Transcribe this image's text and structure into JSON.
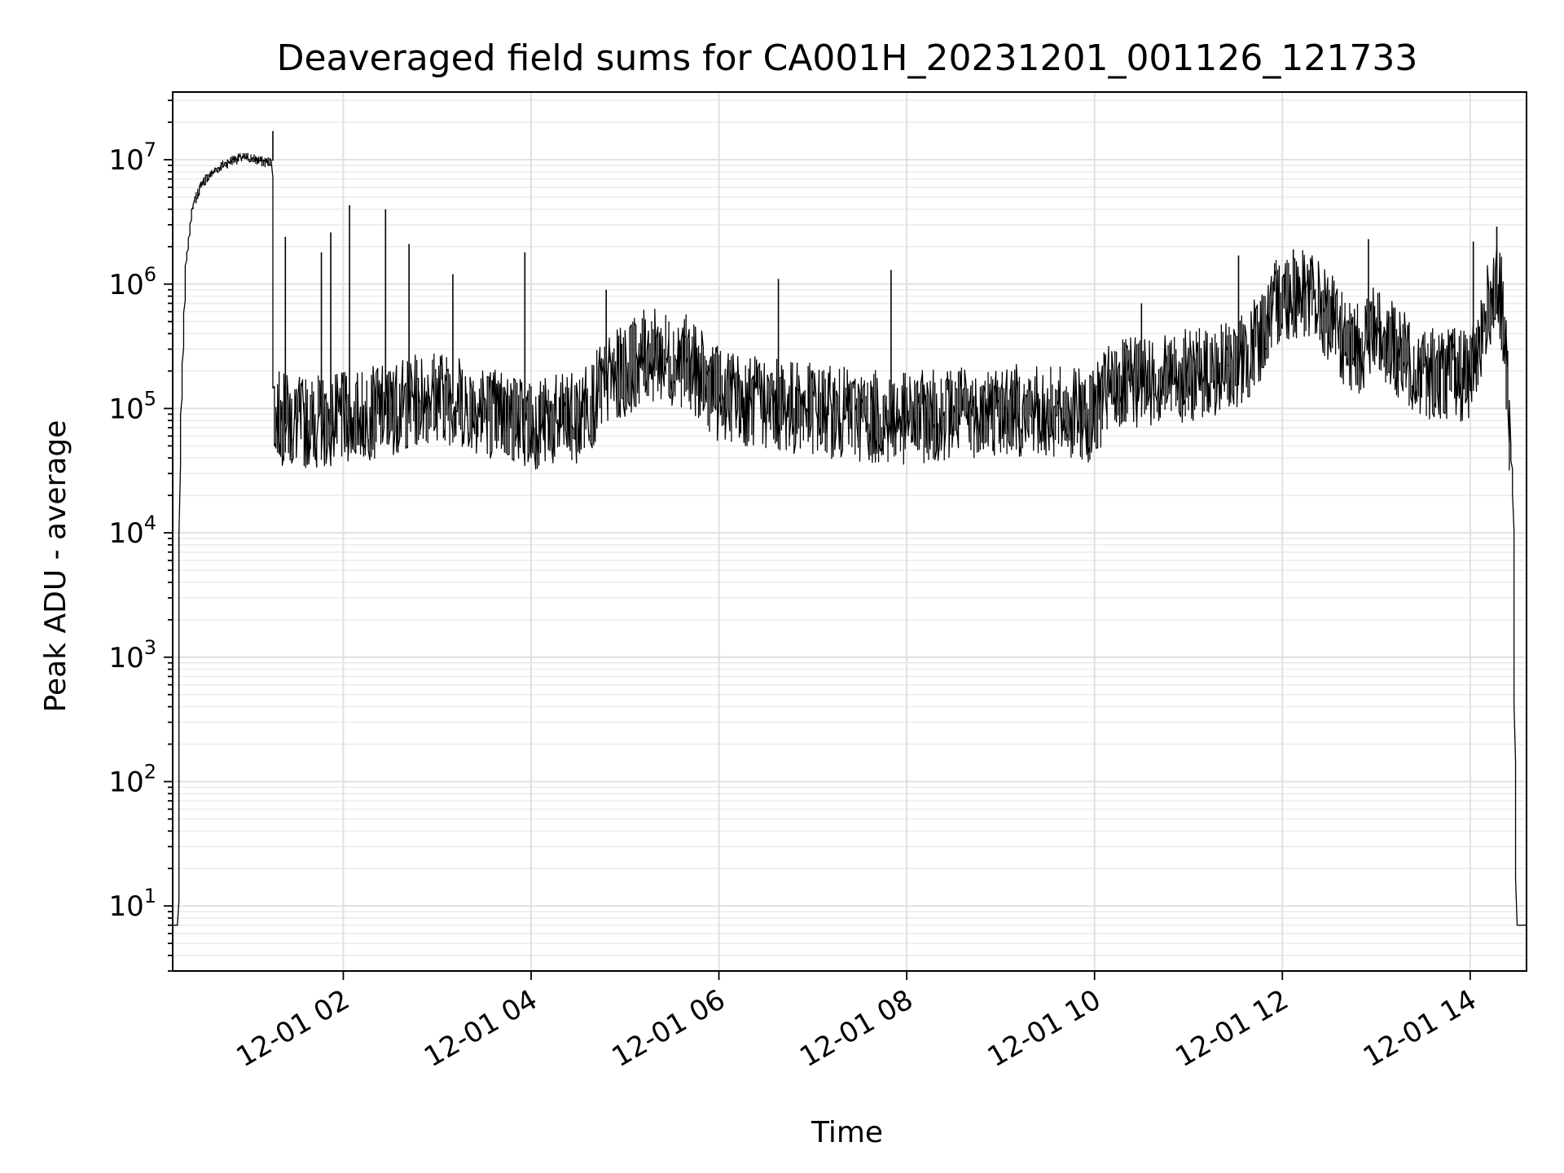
{
  "chart_data": {
    "type": "line",
    "title": "Deaveraged field sums for CA001H_20231201_001126_121733",
    "xlabel": "Time",
    "ylabel": "Peak ADU - average",
    "yscale": "log",
    "ylim": [
      3,
      35000000
    ],
    "xlim": [
      "2023-12-01 00:11",
      "2023-12-01 14:36"
    ],
    "grid": true,
    "colors": {
      "line": "#000000",
      "grid": "#e0e0e0"
    },
    "x_ticks": [
      {
        "t": "2023-12-01 02:00",
        "label": "12-01 02"
      },
      {
        "t": "2023-12-01 04:00",
        "label": "12-01 04"
      },
      {
        "t": "2023-12-01 06:00",
        "label": "12-01 06"
      },
      {
        "t": "2023-12-01 08:00",
        "label": "12-01 08"
      },
      {
        "t": "2023-12-01 10:00",
        "label": "12-01 10"
      },
      {
        "t": "2023-12-01 12:00",
        "label": "12-01 12"
      },
      {
        "t": "2023-12-01 14:00",
        "label": "12-01 14"
      }
    ],
    "y_ticks": [
      {
        "v": 10,
        "base": "10",
        "exp": "1"
      },
      {
        "v": 100,
        "base": "10",
        "exp": "2"
      },
      {
        "v": 1000,
        "base": "10",
        "exp": "3"
      },
      {
        "v": 10000,
        "base": "10",
        "exp": "4"
      },
      {
        "v": 100000,
        "base": "10",
        "exp": "5"
      },
      {
        "v": 1000000,
        "base": "10",
        "exp": "6"
      },
      {
        "v": 10000000,
        "base": "10",
        "exp": "7"
      }
    ],
    "series": [
      {
        "points": [
          [
            "2023-12-01 00:11",
            7
          ],
          [
            "2023-12-01 00:15",
            7
          ],
          [
            "2023-12-01 00:16",
            30000
          ],
          [
            "2023-12-01 00:18",
            300000
          ],
          [
            "2023-12-01 00:20",
            1500000
          ],
          [
            "2023-12-01 00:24",
            4000000
          ],
          [
            "2023-12-01 00:30",
            6500000
          ],
          [
            "2023-12-01 00:40",
            8500000
          ],
          [
            "2023-12-01 00:50",
            10000000
          ],
          [
            "2023-12-01 01:00",
            10500000
          ],
          [
            "2023-12-01 01:10",
            9500000
          ],
          [
            "2023-12-01 01:15",
            9800000
          ],
          [
            "2023-12-01 01:16",
            80000
          ],
          [
            "2023-12-01 01:30",
            70000
          ],
          [
            "2023-12-01 02:00",
            75000
          ],
          [
            "2023-12-01 02:30",
            90000
          ],
          [
            "2023-12-01 03:00",
            120000
          ],
          [
            "2023-12-01 03:30",
            90000
          ],
          [
            "2023-12-01 04:00",
            70000
          ],
          [
            "2023-12-01 04:30",
            75000
          ],
          [
            "2023-12-01 04:50",
            150000
          ],
          [
            "2023-12-01 05:15",
            250000
          ],
          [
            "2023-12-01 05:40",
            220000
          ],
          [
            "2023-12-01 06:00",
            120000
          ],
          [
            "2023-12-01 06:30",
            100000
          ],
          [
            "2023-12-01 07:00",
            90000
          ],
          [
            "2023-12-01 07:30",
            80000
          ],
          [
            "2023-12-01 08:00",
            75000
          ],
          [
            "2023-12-01 08:30",
            85000
          ],
          [
            "2023-12-01 09:00",
            90000
          ],
          [
            "2023-12-01 09:30",
            85000
          ],
          [
            "2023-12-01 10:00",
            80000
          ],
          [
            "2023-12-01 10:10",
            130000
          ],
          [
            "2023-12-01 10:40",
            160000
          ],
          [
            "2023-12-01 11:20",
            180000
          ],
          [
            "2023-12-01 11:40",
            250000
          ],
          [
            "2023-12-01 12:00",
            750000
          ],
          [
            "2023-12-01 12:15",
            800000
          ],
          [
            "2023-12-01 12:30",
            500000
          ],
          [
            "2023-12-01 12:45",
            250000
          ],
          [
            "2023-12-01 13:00",
            400000
          ],
          [
            "2023-12-01 13:15",
            250000
          ],
          [
            "2023-12-01 13:30",
            180000
          ],
          [
            "2023-12-01 14:00",
            170000
          ],
          [
            "2023-12-01 14:15",
            800000
          ],
          [
            "2023-12-01 14:20",
            700000
          ],
          [
            "2023-12-01 14:25",
            100000
          ],
          [
            "2023-12-01 14:28",
            20000
          ],
          [
            "2023-12-01 14:30",
            7
          ],
          [
            "2023-12-01 14:36",
            7
          ]
        ],
        "spikes": [
          [
            "2023-12-01 01:15",
            17000000
          ],
          [
            "2023-12-01 01:23",
            2400000
          ],
          [
            "2023-12-01 01:46",
            1800000
          ],
          [
            "2023-12-01 01:52",
            2600000
          ],
          [
            "2023-12-01 02:04",
            4300000
          ],
          [
            "2023-12-01 02:27",
            4000000
          ],
          [
            "2023-12-01 02:42",
            2100000
          ],
          [
            "2023-12-01 03:10",
            1200000
          ],
          [
            "2023-12-01 03:56",
            1800000
          ],
          [
            "2023-12-01 04:48",
            900000
          ],
          [
            "2023-12-01 06:38",
            1100000
          ],
          [
            "2023-12-01 07:50",
            1300000
          ],
          [
            "2023-12-01 10:30",
            700000
          ],
          [
            "2023-12-01 11:32",
            1700000
          ],
          [
            "2023-12-01 12:07",
            1900000
          ],
          [
            "2023-12-01 12:55",
            2300000
          ],
          [
            "2023-12-01 14:02",
            2200000
          ],
          [
            "2023-12-01 14:17",
            2900000
          ]
        ]
      }
    ]
  }
}
